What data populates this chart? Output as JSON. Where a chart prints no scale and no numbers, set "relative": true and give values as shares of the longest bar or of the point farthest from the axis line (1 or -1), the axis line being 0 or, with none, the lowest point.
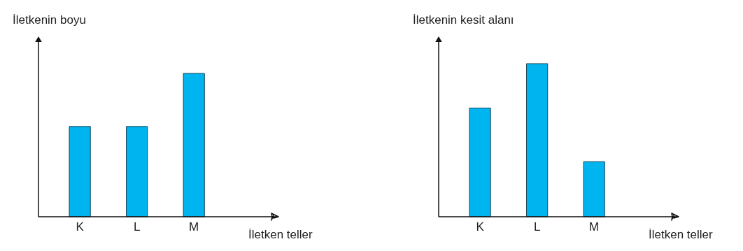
{
  "chart_data": [
    {
      "type": "bar",
      "relative": true,
      "ylabel": "İletkenin boyu",
      "xlabel": "İletken teller",
      "categories": [
        "K",
        "L",
        "M"
      ],
      "values": [
        0.63,
        0.63,
        1
      ],
      "color": "#00b5ef"
    },
    {
      "type": "bar",
      "relative": true,
      "ylabel": "İletkenin kesit alanı",
      "xlabel": "İletken teller",
      "categories": [
        "K",
        "L",
        "M"
      ],
      "values": [
        0.71,
        1,
        0.36
      ],
      "color": "#00b5ef"
    }
  ]
}
